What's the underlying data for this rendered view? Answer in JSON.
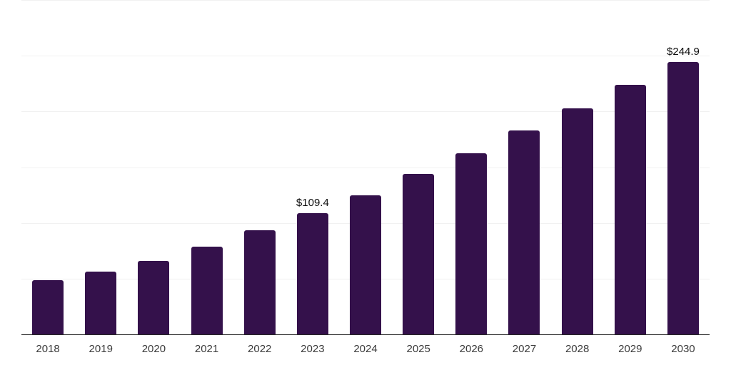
{
  "chart_data": {
    "type": "bar",
    "title": "",
    "xlabel": "",
    "ylabel": "",
    "categories": [
      "2018",
      "2019",
      "2020",
      "2021",
      "2022",
      "2023",
      "2024",
      "2025",
      "2026",
      "2027",
      "2028",
      "2029",
      "2030"
    ],
    "values": [
      49.0,
      56.9,
      66.7,
      79.1,
      94.0,
      109.4,
      125.5,
      144.5,
      163.3,
      183.4,
      203.6,
      224.5,
      244.9
    ],
    "annotations": [
      {
        "category": "2023",
        "text": "$109.4"
      },
      {
        "category": "2030",
        "text": "$244.9"
      }
    ],
    "ylim": [
      0,
      300
    ],
    "gridline_step": 50,
    "grid": true,
    "y_tick_labels_visible": false,
    "legend_position": "none"
  },
  "colors": {
    "bar": "#34114B",
    "gridline": "#f1f1f1",
    "axis_line": "#262626",
    "tick_label": "#3b3b3b",
    "data_label": "#0d0d0d",
    "background": "#ffffff"
  }
}
